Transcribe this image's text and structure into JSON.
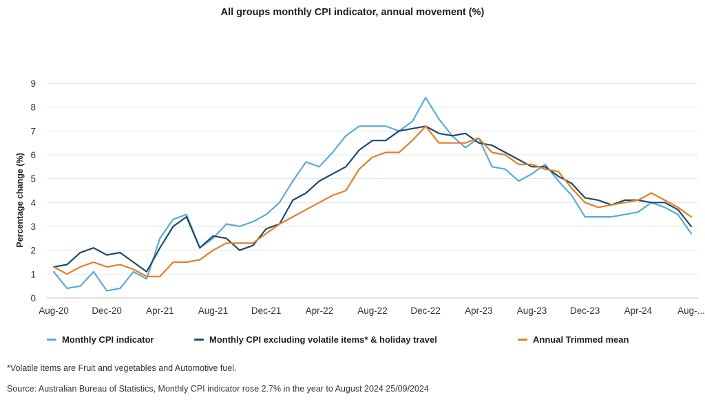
{
  "title": "All groups monthly CPI indicator, annual movement (%)",
  "footnote": "*Volatile items are Fruit and vegetables and Automotive fuel.",
  "source": "Source: Australian Bureau of Statistics, Monthly CPI indicator rose 2.7% in the year to August 2024 25/09/2024",
  "chart_data": {
    "type": "line",
    "ylabel": "Percentage change (%)",
    "xlabel": "",
    "ylim": [
      0,
      9
    ],
    "yticks": [
      0,
      1,
      2,
      3,
      4,
      5,
      6,
      7,
      8,
      9
    ],
    "grid": "horizontal",
    "legend_position": "bottom",
    "x": [
      "Aug-20",
      "Sep-20",
      "Oct-20",
      "Nov-20",
      "Dec-20",
      "Jan-21",
      "Feb-21",
      "Mar-21",
      "Apr-21",
      "May-21",
      "Jun-21",
      "Jul-21",
      "Aug-21",
      "Sep-21",
      "Oct-21",
      "Nov-21",
      "Dec-21",
      "Jan-22",
      "Feb-22",
      "Mar-22",
      "Apr-22",
      "May-22",
      "Jun-22",
      "Jul-22",
      "Aug-22",
      "Sep-22",
      "Oct-22",
      "Nov-22",
      "Dec-22",
      "Jan-23",
      "Feb-23",
      "Mar-23",
      "Apr-23",
      "May-23",
      "Jun-23",
      "Jul-23",
      "Aug-23",
      "Sep-23",
      "Oct-23",
      "Nov-23",
      "Dec-23",
      "Jan-24",
      "Feb-24",
      "Mar-24",
      "Apr-24",
      "May-24",
      "Jun-24",
      "Jul-24",
      "Aug-24"
    ],
    "x_tick_labels": [
      {
        "index": 0,
        "label": "Aug-20"
      },
      {
        "index": 4,
        "label": "Dec-20"
      },
      {
        "index": 8,
        "label": "Apr-21"
      },
      {
        "index": 12,
        "label": "Aug-21"
      },
      {
        "index": 16,
        "label": "Dec-21"
      },
      {
        "index": 20,
        "label": "Apr-22"
      },
      {
        "index": 24,
        "label": "Aug-22"
      },
      {
        "index": 28,
        "label": "Dec-22"
      },
      {
        "index": 32,
        "label": "Apr-23"
      },
      {
        "index": 36,
        "label": "Aug-23"
      },
      {
        "index": 40,
        "label": "Dec-23"
      },
      {
        "index": 44,
        "label": "Apr-24"
      },
      {
        "index": 48,
        "label": "Aug-..."
      }
    ],
    "series": [
      {
        "name": "Monthly CPI indicator",
        "color": "#5aa9d8",
        "values": [
          1.1,
          0.4,
          0.5,
          1.1,
          0.3,
          0.4,
          1.1,
          0.8,
          2.5,
          3.3,
          3.5,
          2.1,
          2.5,
          3.1,
          3.0,
          3.2,
          3.5,
          4.0,
          4.9,
          5.7,
          5.5,
          6.1,
          6.8,
          7.2,
          7.2,
          7.2,
          7.0,
          7.4,
          8.4,
          7.5,
          6.8,
          6.3,
          6.7,
          5.5,
          5.4,
          4.9,
          5.2,
          5.6,
          4.9,
          4.3,
          3.4,
          3.4,
          3.4,
          3.5,
          3.6,
          4.0,
          3.8,
          3.5,
          2.7
        ]
      },
      {
        "name": "Monthly CPI excluding volatile items* & holiday travel",
        "color": "#1b4a6b",
        "values": [
          1.3,
          1.4,
          1.9,
          2.1,
          1.8,
          1.9,
          1.5,
          1.1,
          2.1,
          3.0,
          3.4,
          2.1,
          2.6,
          2.5,
          2.0,
          2.2,
          2.9,
          3.1,
          4.1,
          4.4,
          4.9,
          5.2,
          5.5,
          6.2,
          6.6,
          6.6,
          7.0,
          7.1,
          7.2,
          6.9,
          6.8,
          6.9,
          6.5,
          6.4,
          6.1,
          5.8,
          5.5,
          5.5,
          5.1,
          4.8,
          4.2,
          4.1,
          3.9,
          4.1,
          4.1,
          4.0,
          4.0,
          3.7,
          3.0
        ]
      },
      {
        "name": "Annual Trimmed mean",
        "color": "#e07f25",
        "values": [
          1.3,
          1.0,
          1.3,
          1.5,
          1.3,
          1.4,
          1.2,
          0.9,
          0.9,
          1.5,
          1.5,
          1.6,
          2.0,
          2.3,
          2.3,
          2.3,
          2.7,
          3.1,
          3.4,
          3.7,
          4.0,
          4.3,
          4.5,
          5.4,
          5.9,
          6.1,
          6.1,
          6.6,
          7.2,
          6.5,
          6.5,
          6.5,
          6.7,
          6.1,
          6.0,
          5.6,
          5.6,
          5.4,
          5.3,
          4.6,
          4.0,
          3.8,
          3.9,
          4.0,
          4.1,
          4.4,
          4.1,
          3.8,
          3.4
        ]
      }
    ]
  }
}
